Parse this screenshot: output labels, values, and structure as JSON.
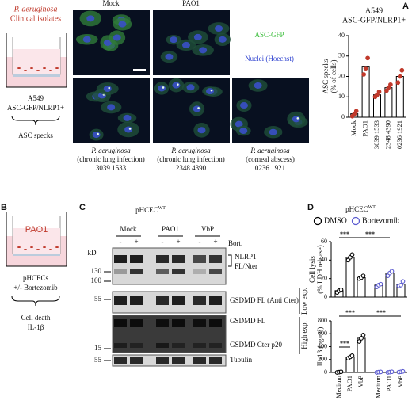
{
  "panel_labels": [
    "A",
    "B",
    "C",
    "D"
  ],
  "panel_a": {
    "schematic": {
      "organism": "P. aeruginosa",
      "subtitle": "Clinical isolates",
      "cell_line": "A549",
      "reporter": "ASC-GFP/NLRP1+",
      "readout": "ASC specks"
    },
    "images": {
      "top_labels": [
        "Mock",
        "PAO1"
      ],
      "channels": [
        "ASC-GFP",
        "Nuclei (Hoechst)"
      ],
      "captions": [
        {
          "organism": "P. aeruginosa",
          "source": "(chronic lung infection)",
          "isolates": "3039  1533"
        },
        {
          "organism": "P. aeruginosa",
          "source": "(chronic lung infection)",
          "isolates": "2348  4390"
        },
        {
          "organism": "P. aeruginosa",
          "source": "(corneal abscess)",
          "isolates": "0236  1921"
        }
      ]
    },
    "chart": {
      "type": "bar",
      "title": [
        "A549",
        "ASC-GFP/NLRP1+"
      ],
      "ylabel": [
        "ASC specks",
        "(% of cells)"
      ],
      "categories": [
        "Mock",
        "PAO1",
        "3039  1533",
        "2348  4390",
        "0236  1921"
      ],
      "values": [
        1.7,
        25,
        11,
        14.5,
        20
      ],
      "points": [
        [
          0.5,
          1.5,
          3
        ],
        [
          21,
          24,
          29
        ],
        [
          10,
          11,
          12.5
        ],
        [
          13,
          14.5,
          16
        ],
        [
          17,
          20,
          23
        ]
      ],
      "point_color": "#c0392b",
      "bar_color": "#ffffff",
      "ylim": [
        0,
        40
      ],
      "yticks": [
        0,
        10,
        20,
        30,
        40
      ]
    }
  },
  "panel_b": {
    "well_label": "PAO1",
    "cells": "pHCECs",
    "treatment": "+/- Bortezomib",
    "readouts": [
      "Cell death",
      "IL-1β"
    ]
  },
  "panel_c": {
    "title": "pHCEC",
    "title_sup": "WT",
    "conditions": [
      "Mock",
      "PAO1",
      "VbP"
    ],
    "signs": [
      "-",
      "+",
      "-",
      "+",
      "-",
      "+"
    ],
    "treatment": "Bort.",
    "mw_unit": "kD",
    "markers": [
      130,
      100,
      55,
      15,
      55
    ],
    "bands": [
      "NLRP1",
      "FL/Nter",
      "GSDMD FL (Anti Cter)",
      "GSDMD FL",
      "GSDMD Cter p20",
      "Tubulin"
    ],
    "exposures": [
      "Low exp.",
      "High exp."
    ]
  },
  "panel_d": {
    "title": "pHCEC",
    "title_sup": "WT",
    "groups": [
      {
        "name": "DMSO",
        "color": "#000000"
      },
      {
        "name": "Bortezomib",
        "color": "#5b5bd0"
      }
    ],
    "categories": [
      "Medium",
      "PAO1",
      "VbP"
    ],
    "charts": [
      {
        "type": "bar",
        "ylabel": [
          "Cell lysis",
          "(% LDH release)"
        ],
        "ylim": [
          0,
          60
        ],
        "yticks": [
          0,
          20,
          40,
          60
        ],
        "values": [
          [
            7,
            43,
            21
          ],
          [
            13,
            26,
            14
          ]
        ],
        "points": [
          [
            [
              5,
              7,
              8
            ],
            [
              40,
              43,
              46
            ],
            [
              20,
              21,
              23
            ]
          ],
          [
            [
              11,
              13,
              14
            ],
            [
              23,
              26,
              28
            ],
            [
              12,
              13,
              17
            ]
          ]
        ],
        "significance": [
          "***",
          "***"
        ]
      },
      {
        "type": "bar",
        "ylabel": [
          "IL-1β (pg/ml)"
        ],
        "ylim": [
          0,
          800
        ],
        "yticks": [
          0,
          200,
          400,
          600,
          800
        ],
        "values": [
          [
            5,
            240,
            530
          ],
          [
            5,
            5,
            10
          ]
        ],
        "points": [
          [
            [
              0,
              5,
              10
            ],
            [
              220,
              240,
              260
            ],
            [
              480,
              530,
              580
            ]
          ],
          [
            [
              0,
              5,
              8
            ],
            [
              0,
              5,
              10
            ],
            [
              5,
              10,
              15
            ]
          ]
        ],
        "significance": [
          "***",
          "***",
          "***"
        ]
      }
    ]
  }
}
